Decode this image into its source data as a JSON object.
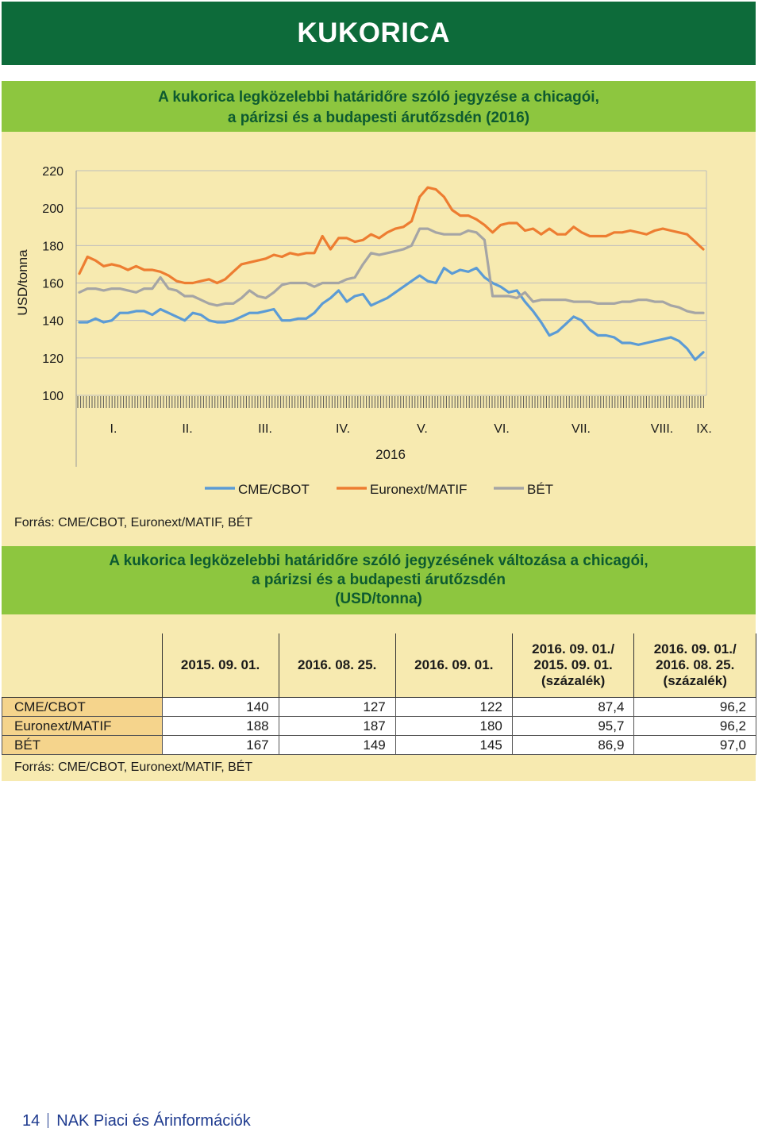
{
  "header": {
    "title": "KUKORICA"
  },
  "chart_section": {
    "title_line1": "A kukorica legközelebbi határidőre szóló jegyzése a chicagói,",
    "title_line2": "a párizsi és a budapesti árutőzsdén (2016)",
    "source": "Forrás: CME/CBOT, Euronext/MATIF, BÉT"
  },
  "chart_data": {
    "type": "line",
    "title": "A kukorica legközelebbi határidőre szóló jegyzése a chicagói, a párizsi és a budapesti árutőzsdén (2016)",
    "ylabel": "USD/tonna",
    "xlabel": "2016",
    "ylim": [
      100,
      220
    ],
    "yticks": [
      100,
      120,
      140,
      160,
      180,
      200,
      220
    ],
    "month_labels": [
      "I.",
      "II.",
      "III.",
      "IV.",
      "V.",
      "VI.",
      "VII.",
      "VIII.",
      "IX."
    ],
    "x_unit": "week of 2016 (approx.)",
    "grid": true,
    "legend_position": "bottom",
    "colors": {
      "CME/CBOT": "#5b9bd5",
      "Euronext/MATIF": "#ed7d31",
      "BÉT": "#a5a5a5"
    },
    "series": [
      {
        "name": "CME/CBOT",
        "points": [
          [
            0,
            139
          ],
          [
            1,
            139
          ],
          [
            2,
            141
          ],
          [
            3,
            139
          ],
          [
            4,
            140
          ],
          [
            5,
            144
          ],
          [
            6,
            144
          ],
          [
            7,
            145
          ],
          [
            8,
            145
          ],
          [
            9,
            143
          ],
          [
            10,
            146
          ],
          [
            11,
            144
          ],
          [
            12,
            142
          ],
          [
            13,
            140
          ],
          [
            14,
            144
          ],
          [
            15,
            143
          ],
          [
            16,
            140
          ],
          [
            17,
            139
          ],
          [
            18,
            139
          ],
          [
            19,
            140
          ],
          [
            20,
            142
          ],
          [
            21,
            144
          ],
          [
            22,
            144
          ],
          [
            23,
            145
          ],
          [
            24,
            146
          ],
          [
            25,
            140
          ],
          [
            26,
            140
          ],
          [
            27,
            141
          ],
          [
            28,
            141
          ],
          [
            29,
            144
          ],
          [
            30,
            149
          ],
          [
            31,
            152
          ],
          [
            32,
            156
          ],
          [
            33,
            150
          ],
          [
            34,
            153
          ],
          [
            35,
            154
          ],
          [
            36,
            148
          ],
          [
            37,
            150
          ],
          [
            38,
            152
          ],
          [
            39,
            155
          ],
          [
            40,
            158
          ],
          [
            41,
            161
          ],
          [
            42,
            164
          ],
          [
            43,
            161
          ],
          [
            44,
            160
          ],
          [
            45,
            168
          ],
          [
            46,
            165
          ],
          [
            47,
            167
          ],
          [
            48,
            166
          ],
          [
            49,
            168
          ],
          [
            50,
            163
          ],
          [
            51,
            160
          ],
          [
            52,
            158
          ],
          [
            53,
            155
          ],
          [
            54,
            156
          ],
          [
            55,
            150
          ],
          [
            56,
            145
          ],
          [
            57,
            139
          ],
          [
            58,
            132
          ],
          [
            59,
            134
          ],
          [
            60,
            138
          ],
          [
            61,
            142
          ],
          [
            62,
            140
          ],
          [
            63,
            135
          ],
          [
            64,
            132
          ],
          [
            65,
            132
          ],
          [
            66,
            131
          ],
          [
            67,
            128
          ],
          [
            68,
            128
          ],
          [
            69,
            127
          ],
          [
            70,
            128
          ],
          [
            71,
            129
          ],
          [
            72,
            130
          ],
          [
            73,
            131
          ],
          [
            74,
            129
          ],
          [
            75,
            125
          ],
          [
            76,
            119
          ],
          [
            77,
            123
          ]
        ]
      },
      {
        "name": "Euronext/MATIF",
        "points": [
          [
            0,
            165
          ],
          [
            1,
            174
          ],
          [
            2,
            172
          ],
          [
            3,
            169
          ],
          [
            4,
            170
          ],
          [
            5,
            169
          ],
          [
            6,
            167
          ],
          [
            7,
            169
          ],
          [
            8,
            167
          ],
          [
            9,
            167
          ],
          [
            10,
            166
          ],
          [
            11,
            164
          ],
          [
            12,
            161
          ],
          [
            13,
            160
          ],
          [
            14,
            160
          ],
          [
            15,
            161
          ],
          [
            16,
            162
          ],
          [
            17,
            160
          ],
          [
            18,
            162
          ],
          [
            19,
            166
          ],
          [
            20,
            170
          ],
          [
            21,
            171
          ],
          [
            22,
            172
          ],
          [
            23,
            173
          ],
          [
            24,
            175
          ],
          [
            25,
            174
          ],
          [
            26,
            176
          ],
          [
            27,
            175
          ],
          [
            28,
            176
          ],
          [
            29,
            176
          ],
          [
            30,
            185
          ],
          [
            31,
            178
          ],
          [
            32,
            184
          ],
          [
            33,
            184
          ],
          [
            34,
            182
          ],
          [
            35,
            183
          ],
          [
            36,
            186
          ],
          [
            37,
            184
          ],
          [
            38,
            187
          ],
          [
            39,
            189
          ],
          [
            40,
            190
          ],
          [
            41,
            193
          ],
          [
            42,
            206
          ],
          [
            43,
            211
          ],
          [
            44,
            210
          ],
          [
            45,
            206
          ],
          [
            46,
            199
          ],
          [
            47,
            196
          ],
          [
            48,
            196
          ],
          [
            49,
            194
          ],
          [
            50,
            191
          ],
          [
            51,
            187
          ],
          [
            52,
            191
          ],
          [
            53,
            192
          ],
          [
            54,
            192
          ],
          [
            55,
            188
          ],
          [
            56,
            189
          ],
          [
            57,
            186
          ],
          [
            58,
            189
          ],
          [
            59,
            186
          ],
          [
            60,
            186
          ],
          [
            61,
            190
          ],
          [
            62,
            187
          ],
          [
            63,
            185
          ],
          [
            64,
            185
          ],
          [
            65,
            185
          ],
          [
            66,
            187
          ],
          [
            67,
            187
          ],
          [
            68,
            188
          ],
          [
            69,
            187
          ],
          [
            70,
            186
          ],
          [
            71,
            188
          ],
          [
            72,
            189
          ],
          [
            73,
            188
          ],
          [
            74,
            187
          ],
          [
            75,
            186
          ],
          [
            76,
            182
          ],
          [
            77,
            178
          ]
        ]
      },
      {
        "name": "BÉT",
        "points": [
          [
            0,
            155
          ],
          [
            1,
            157
          ],
          [
            2,
            157
          ],
          [
            3,
            156
          ],
          [
            4,
            157
          ],
          [
            5,
            157
          ],
          [
            6,
            156
          ],
          [
            7,
            155
          ],
          [
            8,
            157
          ],
          [
            9,
            157
          ],
          [
            10,
            163
          ],
          [
            11,
            157
          ],
          [
            12,
            156
          ],
          [
            13,
            153
          ],
          [
            14,
            153
          ],
          [
            15,
            151
          ],
          [
            16,
            149
          ],
          [
            17,
            148
          ],
          [
            18,
            149
          ],
          [
            19,
            149
          ],
          [
            20,
            152
          ],
          [
            21,
            156
          ],
          [
            22,
            153
          ],
          [
            23,
            152
          ],
          [
            24,
            155
          ],
          [
            25,
            159
          ],
          [
            26,
            160
          ],
          [
            27,
            160
          ],
          [
            28,
            160
          ],
          [
            29,
            158
          ],
          [
            30,
            160
          ],
          [
            31,
            160
          ],
          [
            32,
            160
          ],
          [
            33,
            162
          ],
          [
            34,
            163
          ],
          [
            35,
            170
          ],
          [
            36,
            176
          ],
          [
            37,
            175
          ],
          [
            38,
            176
          ],
          [
            39,
            177
          ],
          [
            40,
            178
          ],
          [
            41,
            180
          ],
          [
            42,
            189
          ],
          [
            43,
            189
          ],
          [
            44,
            187
          ],
          [
            45,
            186
          ],
          [
            46,
            186
          ],
          [
            47,
            186
          ],
          [
            48,
            188
          ],
          [
            49,
            187
          ],
          [
            50,
            183
          ],
          [
            51,
            153
          ],
          [
            52,
            153
          ],
          [
            53,
            153
          ],
          [
            54,
            152
          ],
          [
            55,
            155
          ],
          [
            56,
            150
          ],
          [
            57,
            151
          ],
          [
            58,
            151
          ],
          [
            59,
            151
          ],
          [
            60,
            151
          ],
          [
            61,
            150
          ],
          [
            62,
            150
          ],
          [
            63,
            150
          ],
          [
            64,
            149
          ],
          [
            65,
            149
          ],
          [
            66,
            149
          ],
          [
            67,
            150
          ],
          [
            68,
            150
          ],
          [
            69,
            151
          ],
          [
            70,
            151
          ],
          [
            71,
            150
          ],
          [
            72,
            150
          ],
          [
            73,
            148
          ],
          [
            74,
            147
          ],
          [
            75,
            145
          ],
          [
            76,
            144
          ],
          [
            77,
            144
          ]
        ]
      }
    ]
  },
  "table_section": {
    "title_line1": "A kukorica legközelebbi határidőre szóló jegyzésének változása a chicagói,",
    "title_line2": "a párizsi és a budapesti árutőzsdén",
    "title_line3": "(USD/tonna)",
    "headers": {
      "c1": "2015. 09. 01.",
      "c2": "2016. 08. 25.",
      "c3": "2016. 09. 01.",
      "c4_l1": "2016. 09. 01./",
      "c4_l2": "2015. 09. 01.",
      "c4_l3": "(százalék)",
      "c5_l1": "2016. 09. 01./",
      "c5_l2": "2016. 08. 25.",
      "c5_l3": "(százalék)"
    },
    "rows": [
      {
        "name": "CME/CBOT",
        "values": [
          "140",
          "127",
          "122",
          "87,4",
          "96,2"
        ]
      },
      {
        "name": "Euronext/MATIF",
        "values": [
          "188",
          "187",
          "180",
          "95,7",
          "96,2"
        ]
      },
      {
        "name": "BÉT",
        "values": [
          "167",
          "149",
          "145",
          "86,9",
          "97,0"
        ]
      }
    ],
    "source": "Forrás: CME/CBOT, Euronext/MATIF, BÉT"
  },
  "footer": {
    "page_number": "14",
    "publication": "NAK Piaci és Árinformációk"
  }
}
